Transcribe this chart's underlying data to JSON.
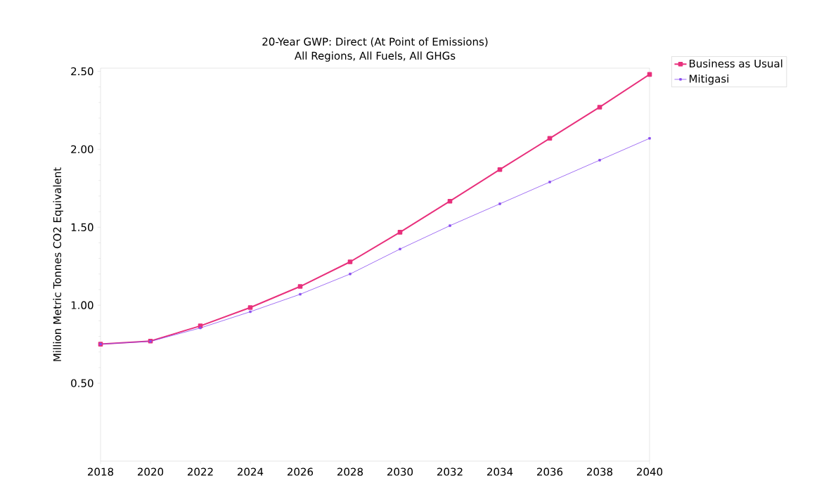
{
  "chart_data": {
    "type": "line",
    "title": "20-Year GWP: Direct (At Point of Emissions)",
    "subtitle": "All Regions, All Fuels, All GHGs",
    "ylabel": "Million Metric Tonnes CO2 Equivalent",
    "x": [
      2018,
      2020,
      2022,
      2024,
      2026,
      2028,
      2030,
      2032,
      2034,
      2036,
      2038,
      2040
    ],
    "series": [
      {
        "name": "Business as Usual",
        "color": "#e8307c",
        "values": [
          0.75,
          0.77,
          0.867,
          0.985,
          1.12,
          1.278,
          1.468,
          1.667,
          1.87,
          2.07,
          2.27,
          2.48
        ]
      },
      {
        "name": "Mitigasi",
        "color": "#8a4cf0",
        "values": [
          0.75,
          0.768,
          0.854,
          0.958,
          1.07,
          1.2,
          1.36,
          1.51,
          1.65,
          1.79,
          1.93,
          2.07
        ]
      }
    ],
    "xlim": [
      2018,
      2040
    ],
    "ylim": [
      0,
      2.52
    ],
    "xticks": [
      2018,
      2020,
      2022,
      2024,
      2026,
      2028,
      2030,
      2032,
      2034,
      2036,
      2038,
      2040
    ],
    "yticks": [
      {
        "value": 0.5,
        "label": "0.50"
      },
      {
        "value": 1.0,
        "label": "1.00"
      },
      {
        "value": 1.5,
        "label": "1.50"
      },
      {
        "value": 2.0,
        "label": "2.00"
      },
      {
        "value": 2.5,
        "label": "2.50"
      }
    ],
    "legend": "top right",
    "marker": "square",
    "line_style": "solid",
    "grid": false
  }
}
